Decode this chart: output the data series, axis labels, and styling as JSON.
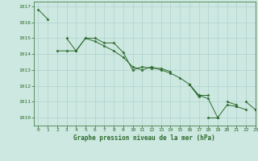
{
  "title": "Graphe pression niveau de la mer (hPa)",
  "bg_color": "#cce8e0",
  "grid_color": "#aacccc",
  "line_color": "#2d6a2d",
  "xlim": [
    -0.5,
    23
  ],
  "ylim": [
    1009.5,
    1017.3
  ],
  "yticks": [
    1010,
    1011,
    1012,
    1013,
    1014,
    1015,
    1016,
    1017
  ],
  "xticks": [
    0,
    1,
    2,
    3,
    4,
    5,
    6,
    7,
    8,
    9,
    10,
    11,
    12,
    13,
    14,
    15,
    16,
    17,
    18,
    19,
    20,
    21,
    22,
    23
  ],
  "series": [
    [
      1016.8,
      1016.2,
      null,
      1015.0,
      1014.2,
      1015.0,
      1015.0,
      1014.7,
      1014.7,
      1014.1,
      1013.0,
      1013.2,
      1013.1,
      1013.1,
      1012.9,
      null,
      1012.1,
      1011.4,
      1011.4,
      null,
      1011.0,
      1010.8,
      null,
      null
    ],
    [
      null,
      null,
      1014.2,
      1014.2,
      1014.2,
      1015.0,
      1014.8,
      1014.5,
      1014.2,
      1013.8,
      1013.2,
      1013.0,
      1013.2,
      1013.0,
      1012.8,
      1012.5,
      1012.1,
      1011.4,
      1011.2,
      1010.0,
      1010.8,
      1010.7,
      1010.5,
      null
    ],
    [
      null,
      null,
      null,
      null,
      null,
      null,
      null,
      null,
      null,
      null,
      null,
      null,
      null,
      null,
      null,
      null,
      null,
      null,
      1010.0,
      1010.0,
      null,
      1010.7,
      null,
      1010.5
    ],
    [
      null,
      null,
      null,
      null,
      null,
      null,
      null,
      null,
      null,
      null,
      null,
      null,
      null,
      null,
      null,
      null,
      1012.1,
      1011.3,
      null,
      null,
      null,
      null,
      1011.0,
      1010.5
    ]
  ]
}
